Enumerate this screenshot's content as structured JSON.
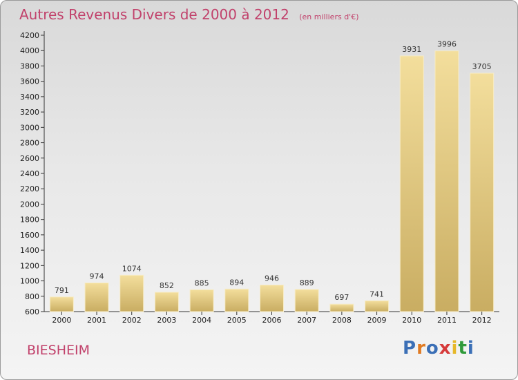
{
  "page": {
    "title": "Autres Revenus Divers de 2000 à 2012",
    "title_unit": "(en milliers d'€)",
    "place": "BIESHEIM",
    "logo": "Proxiti",
    "logo_colors": [
      "#3b6fb6",
      "#e07a22",
      "#3b6fb6",
      "#d63a3a",
      "#e6b82a",
      "#2f9a3a",
      "#3b6fb6"
    ]
  },
  "chart_data": {
    "type": "bar",
    "title": "Autres Revenus Divers de 2000 à 2012",
    "subtitle": "(en milliers d'€)",
    "categories": [
      "2000",
      "2001",
      "2002",
      "2003",
      "2004",
      "2005",
      "2006",
      "2007",
      "2008",
      "2009",
      "2010",
      "2011",
      "2012"
    ],
    "values": [
      791,
      974,
      1074,
      852,
      885,
      894,
      946,
      889,
      697,
      741,
      3931,
      3996,
      3705
    ],
    "ylim": [
      600,
      4200
    ],
    "yticks": [
      600,
      800,
      1000,
      1200,
      1400,
      1600,
      1800,
      2000,
      2200,
      2400,
      2600,
      2800,
      3000,
      3200,
      3400,
      3600,
      3800,
      4000,
      4200
    ],
    "grid": false,
    "colors": {
      "bar_light": "#f3de9c",
      "bar_dark": "#c9ad62",
      "axis": "#333333"
    }
  }
}
